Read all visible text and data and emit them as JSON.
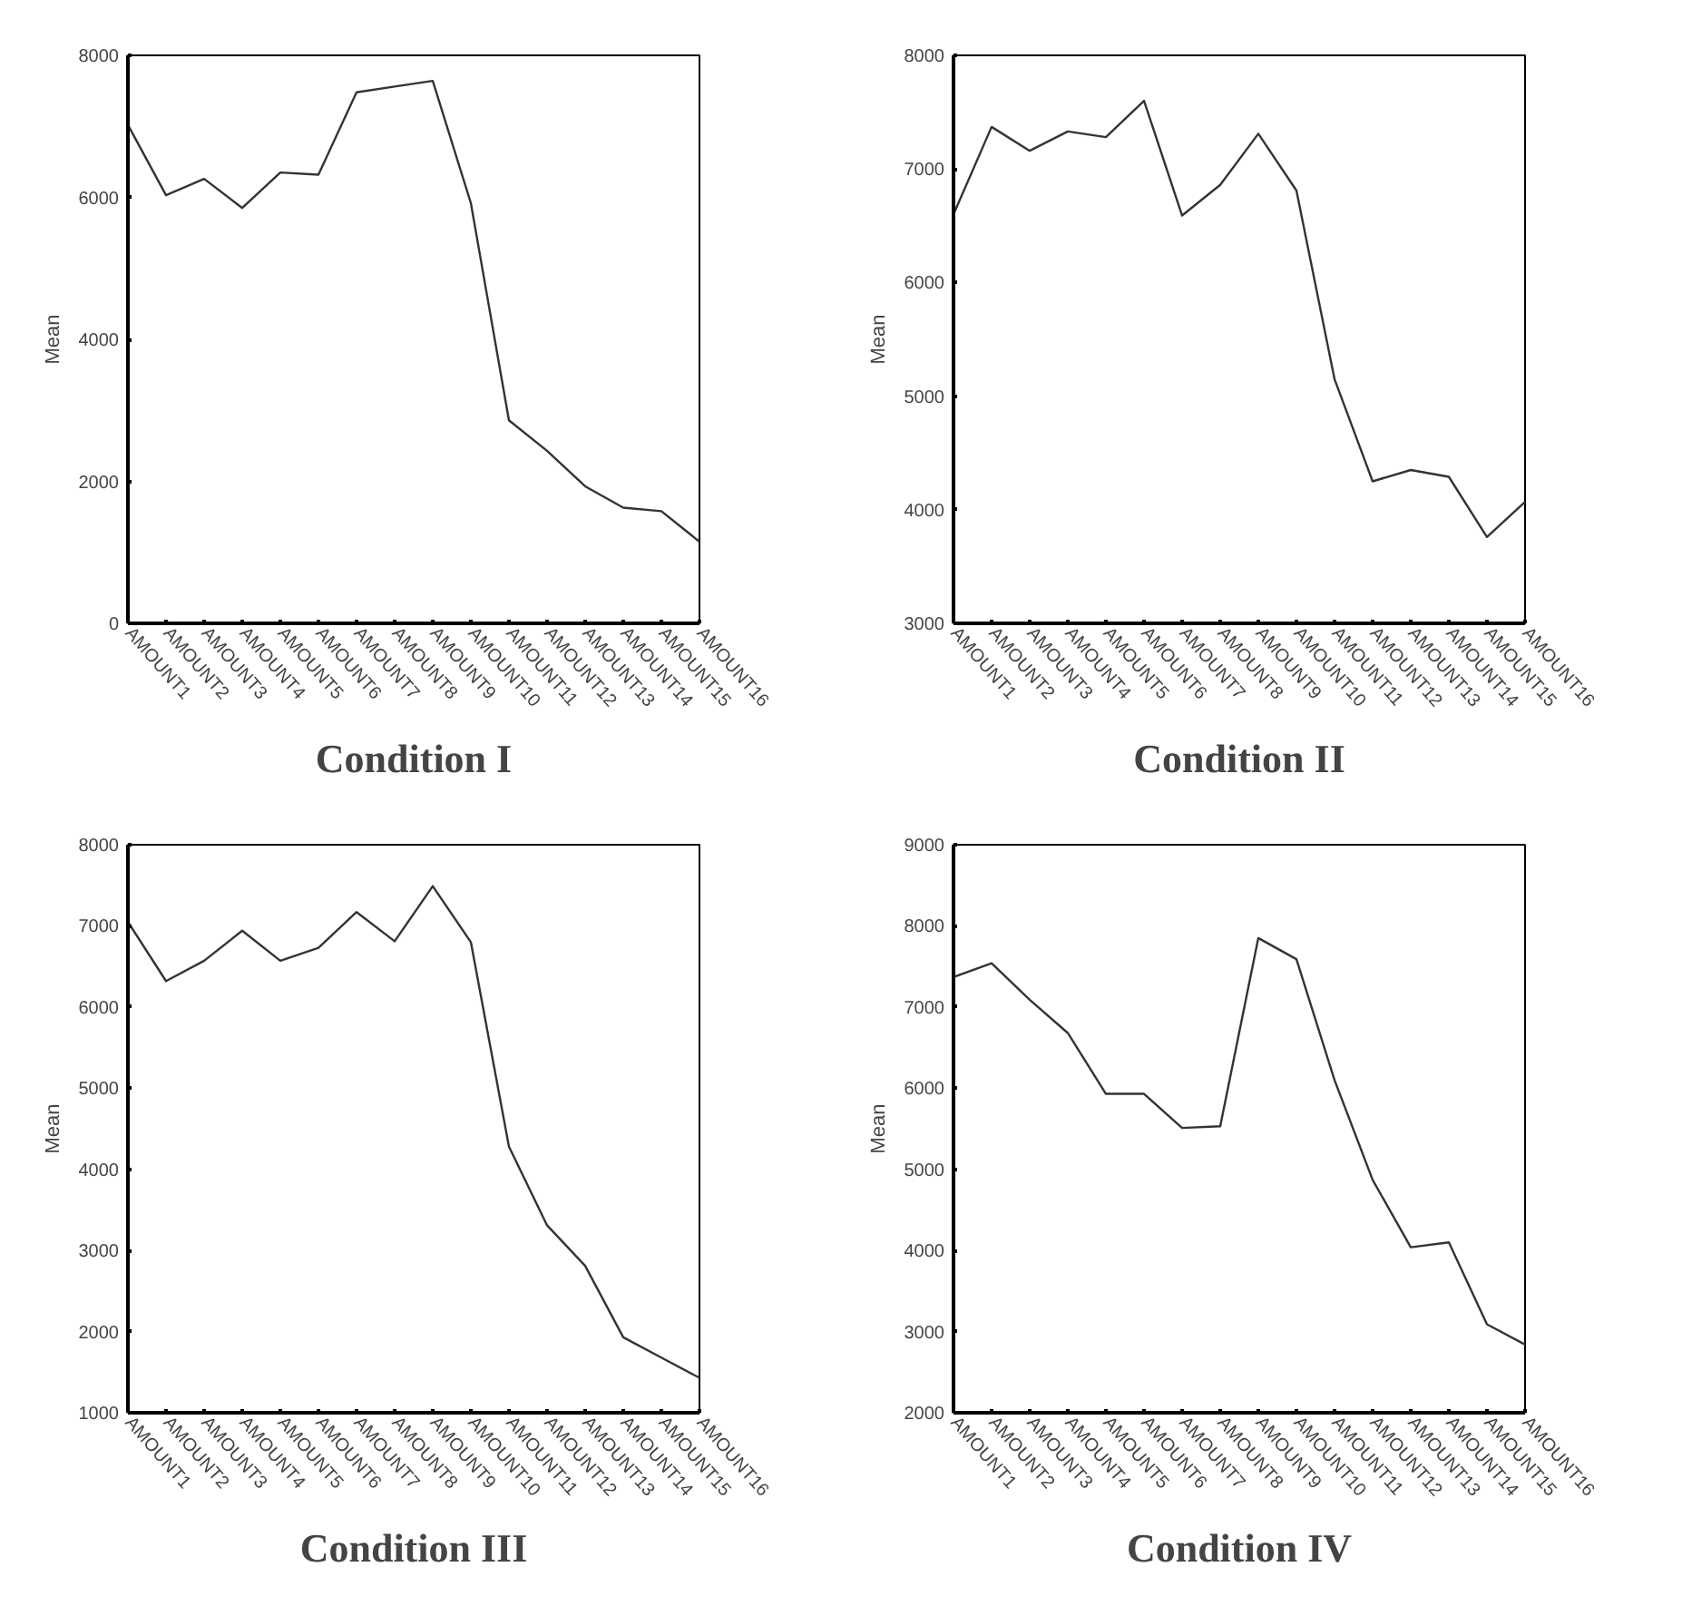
{
  "chart_data": [
    {
      "type": "line",
      "title": "Condition I",
      "ylabel": "Mean",
      "color": "#333333",
      "grid": false,
      "categories": [
        "AMOUNT1",
        "AMOUNT2",
        "AMOUNT3",
        "AMOUNT4",
        "AMOUNT5",
        "AMOUNT6",
        "AMOUNT7",
        "AMOUNT8",
        "AMOUNT9",
        "AMOUNT10",
        "AMOUNT11",
        "AMOUNT12",
        "AMOUNT13",
        "AMOUNT14",
        "AMOUNT15",
        "AMOUNT16"
      ],
      "values": [
        7020,
        6030,
        6260,
        5850,
        6350,
        6320,
        7480,
        7560,
        7640,
        5920,
        2860,
        2430,
        1930,
        1630,
        1580,
        1150
      ],
      "ylim": [
        0,
        8000
      ],
      "yticks": [
        0,
        2000,
        4000,
        6000,
        8000
      ]
    },
    {
      "type": "line",
      "title": "Condition II",
      "ylabel": "Mean",
      "color": "#333333",
      "grid": false,
      "categories": [
        "AMOUNT1",
        "AMOUNT2",
        "AMOUNT3",
        "AMOUNT4",
        "AMOUNT5",
        "AMOUNT6",
        "AMOUNT7",
        "AMOUNT8",
        "AMOUNT9",
        "AMOUNT10",
        "AMOUNT11",
        "AMOUNT12",
        "AMOUNT13",
        "AMOUNT14",
        "AMOUNT15",
        "AMOUNT16"
      ],
      "values": [
        6600,
        7370,
        7160,
        7330,
        7280,
        7600,
        6590,
        6860,
        7310,
        6810,
        5150,
        4250,
        4350,
        4290,
        3760,
        4070
      ],
      "ylim": [
        3000,
        8000
      ],
      "yticks": [
        3000,
        4000,
        5000,
        6000,
        7000,
        8000
      ]
    },
    {
      "type": "line",
      "title": "Condition III",
      "ylabel": "Mean",
      "color": "#333333",
      "grid": false,
      "categories": [
        "AMOUNT1",
        "AMOUNT2",
        "AMOUNT3",
        "AMOUNT4",
        "AMOUNT5",
        "AMOUNT6",
        "AMOUNT7",
        "AMOUNT8",
        "AMOUNT9",
        "AMOUNT10",
        "AMOUNT11",
        "AMOUNT12",
        "AMOUNT13",
        "AMOUNT14",
        "AMOUNT15",
        "AMOUNT16"
      ],
      "values": [
        7050,
        6320,
        6570,
        6940,
        6570,
        6730,
        7170,
        6810,
        7490,
        6800,
        4280,
        3310,
        2810,
        1930,
        1680,
        1430
      ],
      "ylim": [
        1000,
        8000
      ],
      "yticks": [
        1000,
        2000,
        3000,
        4000,
        5000,
        6000,
        7000,
        8000
      ]
    },
    {
      "type": "line",
      "title": "Condition IV",
      "ylabel": "Mean",
      "color": "#333333",
      "grid": false,
      "categories": [
        "AMOUNT1",
        "AMOUNT2",
        "AMOUNT3",
        "AMOUNT4",
        "AMOUNT5",
        "AMOUNT6",
        "AMOUNT7",
        "AMOUNT8",
        "AMOUNT9",
        "AMOUNT10",
        "AMOUNT11",
        "AMOUNT12",
        "AMOUNT13",
        "AMOUNT14",
        "AMOUNT15",
        "AMOUNT16"
      ],
      "values": [
        7370,
        7540,
        7090,
        6680,
        5930,
        5930,
        5510,
        5530,
        7850,
        7590,
        6100,
        4870,
        4040,
        4100,
        3090,
        2840
      ],
      "ylim": [
        2000,
        9000
      ],
      "yticks": [
        2000,
        3000,
        4000,
        5000,
        6000,
        7000,
        8000,
        9000
      ]
    }
  ]
}
